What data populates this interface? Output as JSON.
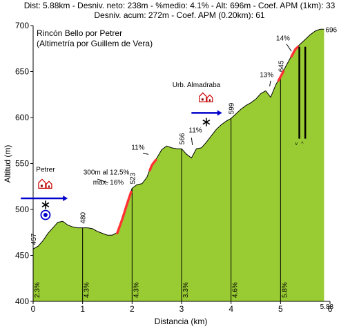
{
  "header": {
    "line1": "Dist: 5.88km - Desniv. neto: 238m - %medio: 4.1% - Alt: 696m - Coef. APM (1km): 33",
    "line2": "Desniv. acum: 272m - Coef. APM (0.20km): 61"
  },
  "chart_data": {
    "type": "area",
    "title": "Rincón Bello por Petrer",
    "subtitle": "(Altimetría por Guillem de Vera)",
    "xlabel": "Distancia (km)",
    "ylabel": "Altitud (m)",
    "xlim": [
      0,
      5.88
    ],
    "ylim": [
      400,
      700
    ],
    "x_ticks": [
      0,
      1,
      2,
      3,
      4,
      5,
      6
    ],
    "y_ticks": [
      400,
      450,
      500,
      550,
      600,
      650,
      700
    ],
    "grid": false,
    "fill_color": "#99cc33",
    "line_color": "#000000",
    "steep_color": "#ff3333",
    "profile": {
      "x": [
        0,
        0.1,
        0.2,
        0.3,
        0.4,
        0.5,
        0.6,
        0.7,
        0.8,
        0.9,
        1.0,
        1.1,
        1.2,
        1.3,
        1.4,
        1.5,
        1.6,
        1.7,
        1.8,
        1.9,
        2.0,
        2.1,
        2.2,
        2.3,
        2.4,
        2.5,
        2.6,
        2.7,
        2.8,
        2.9,
        3.0,
        3.1,
        3.2,
        3.3,
        3.4,
        3.5,
        3.6,
        3.7,
        3.8,
        3.9,
        4.0,
        4.1,
        4.2,
        4.3,
        4.4,
        4.5,
        4.6,
        4.7,
        4.8,
        4.9,
        5.0,
        5.1,
        5.2,
        5.3,
        5.4,
        5.5,
        5.6,
        5.7,
        5.8,
        5.88
      ],
      "y": [
        457,
        460,
        466,
        474,
        480,
        486,
        487,
        483,
        481,
        480,
        480,
        480,
        479,
        476,
        474,
        472,
        472,
        475,
        490,
        507,
        523,
        527,
        528,
        535,
        549,
        556,
        565,
        569,
        567,
        566,
        566,
        560,
        556,
        566,
        567,
        573,
        580,
        587,
        592,
        596,
        599,
        604,
        609,
        613,
        616,
        620,
        626,
        629,
        622,
        635,
        645,
        655,
        665,
        675,
        680,
        685,
        690,
        694,
        696,
        696
      ]
    },
    "distance_markers": [
      {
        "x": 0.0,
        "alt_label": "457",
        "grade": "2.3%"
      },
      {
        "x": 1.0,
        "alt_label": "480",
        "grade": "4.3%"
      },
      {
        "x": 2.0,
        "alt_label": "523",
        "grade": "4.3%"
      },
      {
        "x": 3.0,
        "alt_label": "566",
        "grade": "3.3%"
      },
      {
        "x": 4.0,
        "alt_label": "599",
        "grade": "4.6%"
      },
      {
        "x": 5.0,
        "alt_label": "645",
        "grade": "5.8%"
      },
      {
        "x": 5.88,
        "alt_label": "696",
        "grade": ""
      }
    ],
    "steep_sections": [
      {
        "x0": 1.7,
        "x1": 1.98
      },
      {
        "x0": 2.36,
        "x1": 2.48
      },
      {
        "x0": 4.96,
        "x1": 5.06
      },
      {
        "x0": 5.22,
        "x1": 5.35
      }
    ],
    "annotations": [
      {
        "text": "Petrer",
        "x": 0.25,
        "y": 541
      },
      {
        "text": "300m al 12.5%",
        "x": 1.48,
        "y": 538
      },
      {
        "text": "max. 16%",
        "x": 1.52,
        "y": 527
      },
      {
        "text": "11%",
        "x": 2.12,
        "y": 565
      },
      {
        "text": "11%",
        "x": 3.28,
        "y": 584
      },
      {
        "text": "Urb. Almadraba",
        "x": 3.3,
        "y": 633
      },
      {
        "text": "13%",
        "x": 4.72,
        "y": 644
      },
      {
        "text": "14%",
        "x": 5.05,
        "y": 684
      }
    ],
    "pointers": [
      {
        "x": 1.3,
        "y": 533,
        "tx": 1.52,
        "ty": 529
      },
      {
        "x": 2.22,
        "y": 561,
        "tx": 2.33,
        "ty": 560
      },
      {
        "x": 3.2,
        "y": 578,
        "tx": 3.22,
        "ty": 570
      },
      {
        "x": 4.8,
        "y": 640,
        "tx": 4.78,
        "ty": 634
      },
      {
        "x": 5.12,
        "y": 680,
        "tx": 5.22,
        "ty": 672
      }
    ],
    "towns": [
      {
        "x": 0.25,
        "y": 523,
        "arrow_y": 512,
        "arrow_x0": -0.25,
        "arrow_x1": 0.7
      },
      {
        "x": 3.5,
        "y": 617,
        "arrow_y": 605,
        "arrow_x0": 3.2,
        "arrow_x1": 3.82
      }
    ],
    "stars": [
      {
        "x": 0.25,
        "y": 505
      },
      {
        "x": 3.5,
        "y": 595
      }
    ],
    "water_icon": {
      "x": 0.25,
      "y": 494
    },
    "vertical_bars": [
      {
        "x": 5.38,
        "y0": 577,
        "y1": 677
      },
      {
        "x": 5.5,
        "y0": 577,
        "y1": 677
      }
    ],
    "vertical_bar_labels": [
      {
        "text": "v",
        "x": 5.32,
        "y": 570
      },
      {
        "text": "^",
        "x": 5.44,
        "y": 570
      }
    ]
  }
}
